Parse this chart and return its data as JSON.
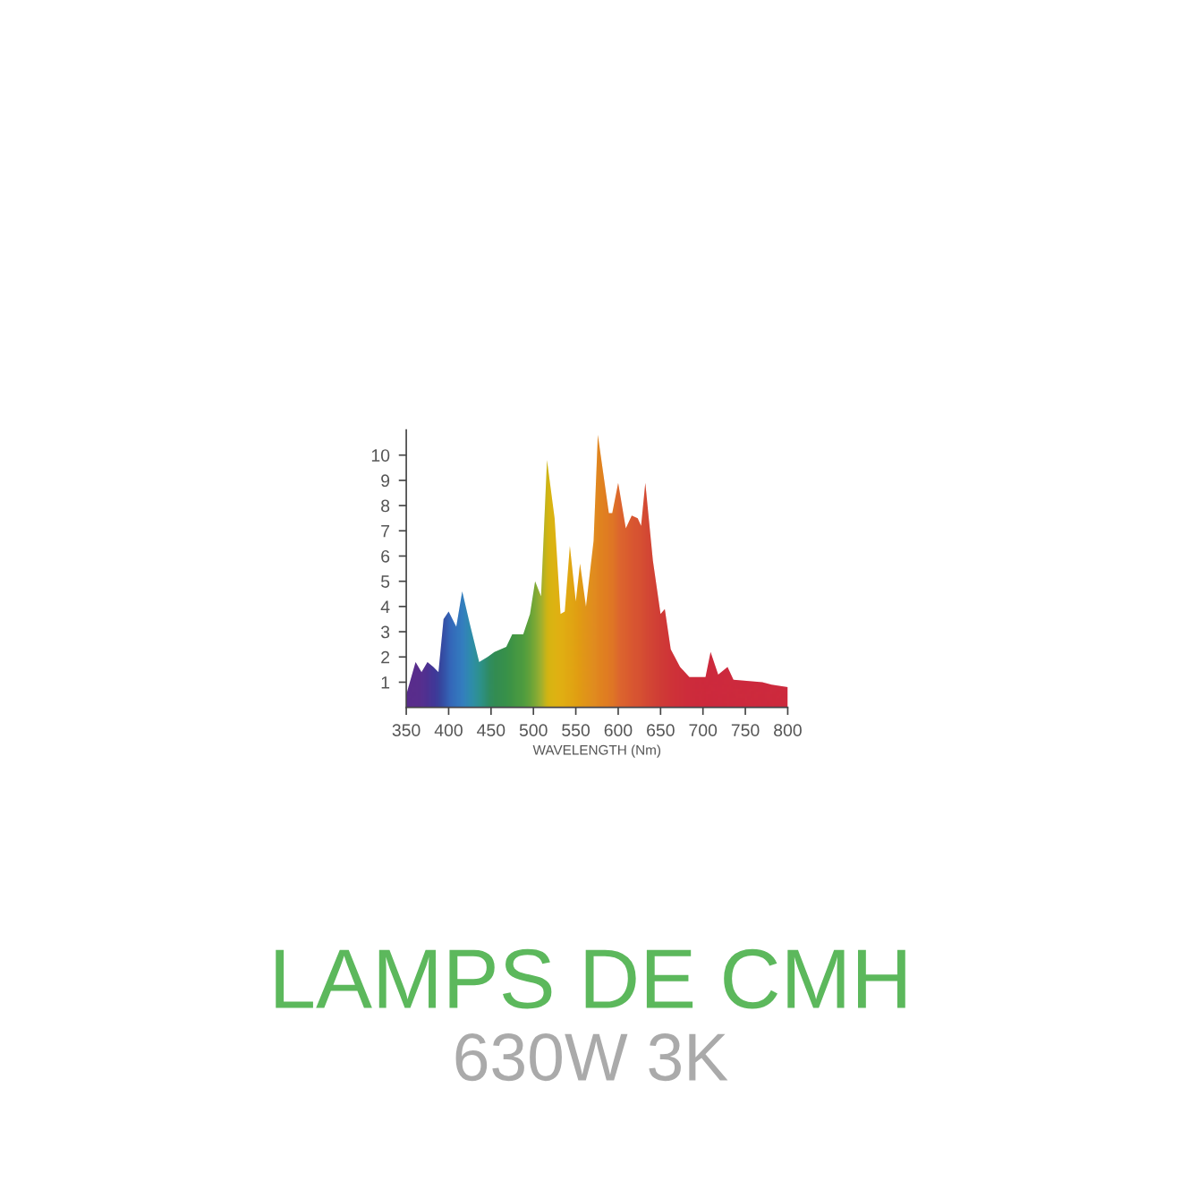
{
  "chart_data": {
    "type": "area",
    "title": "LAMPS DE CMH",
    "subtitle": "630W 3K",
    "xlabel": "WAVELENGTH (Nm)",
    "x": [
      350,
      361,
      368,
      375,
      382,
      388,
      394,
      400,
      409,
      416,
      425,
      436,
      446,
      454,
      468,
      475,
      488,
      496,
      502,
      509,
      516,
      525,
      532,
      537,
      543,
      550,
      555,
      562,
      571,
      576,
      589,
      593,
      600,
      609,
      616,
      623,
      627,
      632,
      641,
      650,
      655,
      662,
      673,
      684,
      698,
      703,
      709,
      718,
      729,
      736,
      770,
      781,
      800
    ],
    "series": [
      {
        "values": [
          0.5,
          1.8,
          1.4,
          1.8,
          1.6,
          1.4,
          3.5,
          3.8,
          3.2,
          4.6,
          3.3,
          1.8,
          2.0,
          2.2,
          2.4,
          2.9,
          2.9,
          3.7,
          5.0,
          4.4,
          9.8,
          7.5,
          3.7,
          3.8,
          6.4,
          4.2,
          5.7,
          4.0,
          6.6,
          10.8,
          7.7,
          7.7,
          8.9,
          7.1,
          7.6,
          7.5,
          7.2,
          8.9,
          5.8,
          3.7,
          3.9,
          2.3,
          1.6,
          1.2,
          1.2,
          1.2,
          2.2,
          1.3,
          1.6,
          1.1,
          1.0,
          0.9,
          0.8
        ],
        "colors": [
          "#5a2d8c",
          "#5a2d8c",
          "#553090",
          "#4a3494",
          "#3e3a9a",
          "#34479f",
          "#3058ac",
          "#2f6fbf",
          "#2f7fc4",
          "#2f8cc6",
          "#2a9bb0",
          "#27a08c",
          "#2a9a5e",
          "#2f9a4a",
          "#35a040",
          "#3ea53a",
          "#50ad34",
          "#6ab52e",
          "#8abd28",
          "#b0c420",
          "#e8c800",
          "#f2c600",
          "#f5c200",
          "#f5bd00",
          "#f5b800",
          "#f5b000",
          "#f5aa05",
          "#f5a20a",
          "#f59a10",
          "#f5920f",
          "#f48515",
          "#f38018",
          "#f07020",
          "#ee6622",
          "#ec5e24",
          "#ea5825",
          "#e85426",
          "#e64e27",
          "#e44628",
          "#e23e2a",
          "#e13a2b",
          "#e0352c",
          "#df302e",
          "#de2c30",
          "#de2a30",
          "#de2a30",
          "#de2a32",
          "#de2a32",
          "#de2a32",
          "#de2a32",
          "#de2a32",
          "#de2a32",
          "#de2a32"
        ]
      }
    ],
    "xlim": [
      350,
      800
    ],
    "ylim": [
      0,
      11
    ],
    "xticks": [
      350,
      400,
      450,
      500,
      550,
      600,
      650,
      700,
      750,
      800
    ],
    "yticks": [
      1,
      2,
      3,
      4,
      5,
      6,
      7,
      8,
      9,
      10
    ],
    "grid": false,
    "legend": false
  }
}
